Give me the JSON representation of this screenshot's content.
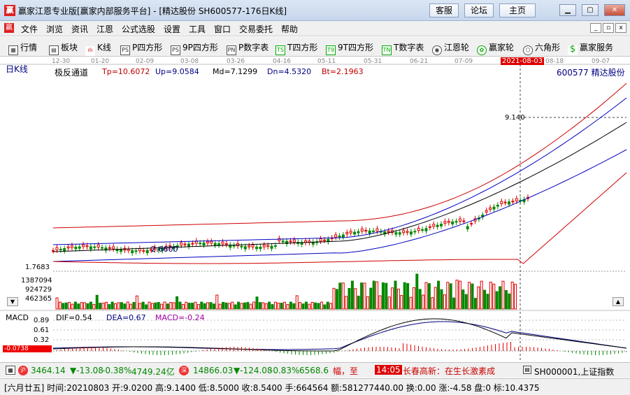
{
  "window": {
    "logo": "赢",
    "title": "赢家江恩专业版[赢家内部服务平台] - [精达股份  SH600577-176日K线]",
    "buttons": [
      "客服",
      "论坛",
      "主页"
    ]
  },
  "menu": [
    "文件",
    "浏览",
    "资讯",
    "江恩",
    "公式选股",
    "设置",
    "工具",
    "窗口",
    "交易委托",
    "帮助"
  ],
  "toolbar": [
    {
      "label": "行情",
      "icon": "grid-icon"
    },
    {
      "label": "板块",
      "icon": "blocks-icon"
    },
    {
      "label": "K线",
      "icon": "candle-icon"
    },
    {
      "label": "P四方形",
      "icon": "ps-icon",
      "badge": "PS"
    },
    {
      "label": "9P四方形",
      "icon": "9p-icon",
      "badge": "PS"
    },
    {
      "label": "P数字表",
      "icon": "pn-icon",
      "badge": "PN"
    },
    {
      "label": "T四方形",
      "icon": "ts-icon",
      "badge": "TS"
    },
    {
      "label": "9T四方形",
      "icon": "9t-icon",
      "badge": "T9"
    },
    {
      "label": "T数字表",
      "icon": "tn-icon",
      "badge": "TN"
    },
    {
      "label": "江恩轮",
      "icon": "gann-wheel-icon"
    },
    {
      "label": "赢家轮",
      "icon": "winner-wheel-icon"
    },
    {
      "label": "六角形",
      "icon": "hexagon-icon"
    },
    {
      "label": "赢家服务",
      "icon": "dollar-icon"
    }
  ],
  "chart": {
    "period_label": "日K线",
    "dates": [
      "12-30",
      "01-20",
      "02-09",
      "03-08",
      "03-26",
      "04-16",
      "05-11",
      "05-31",
      "06-21",
      "07-09",
      "2021-08-03",
      "08-18",
      "09-07"
    ],
    "indicator_name": "极反通道",
    "indicators": [
      {
        "label": "Tp=10.6072",
        "color": "#c00000"
      },
      {
        "label": "Up=9.0584",
        "color": "#000080"
      },
      {
        "label": "Md=7.1299",
        "color": "#000000"
      },
      {
        "label": "Dn=4.5320",
        "color": "#000080"
      },
      {
        "label": "Bt=2.1963",
        "color": "#c00000"
      }
    ],
    "stock": "600577  精达股份",
    "price_label": "9.140",
    "low_label": "2.6600",
    "axis_label": "1.7683",
    "volume_ticks": [
      "1387094",
      "924729",
      "462365"
    ],
    "macd": {
      "name": "MACD",
      "dif": "DIF=0.54",
      "dea": "DEA=0.67",
      "macd": "MACD=-0.24",
      "ticks": [
        "0.89",
        "0.61",
        "0.32"
      ],
      "neg_label": "-0.0738"
    },
    "colors": {
      "up": "#e00000",
      "down": "#008800",
      "upper": "#0000c0",
      "mid": "#000000",
      "outer": "#d00000"
    }
  },
  "indexbar": {
    "sh": {
      "value": "3464.14",
      "change": "▼-13.08",
      "pct": "-0.38%",
      "amount": "4749.24亿"
    },
    "sz": {
      "value": "14866.03",
      "change": "▼-124.08",
      "pct": "-0.83%",
      "amount": "6568.6"
    },
    "ticker": "幅，至",
    "ticker_time": "14:05",
    "ticker_news": "长春高新：在生长激素成",
    "index_name": "SH000001,上证指数"
  },
  "infobar": {
    "text": "[六月廿五] 时间:20210803 开:9.0200 高:9.1400 低:8.5000 收:8.5400 手:664564 额:581277440.00 换:0.00 涨:-4.58 盘:0 标:10.4375"
  }
}
